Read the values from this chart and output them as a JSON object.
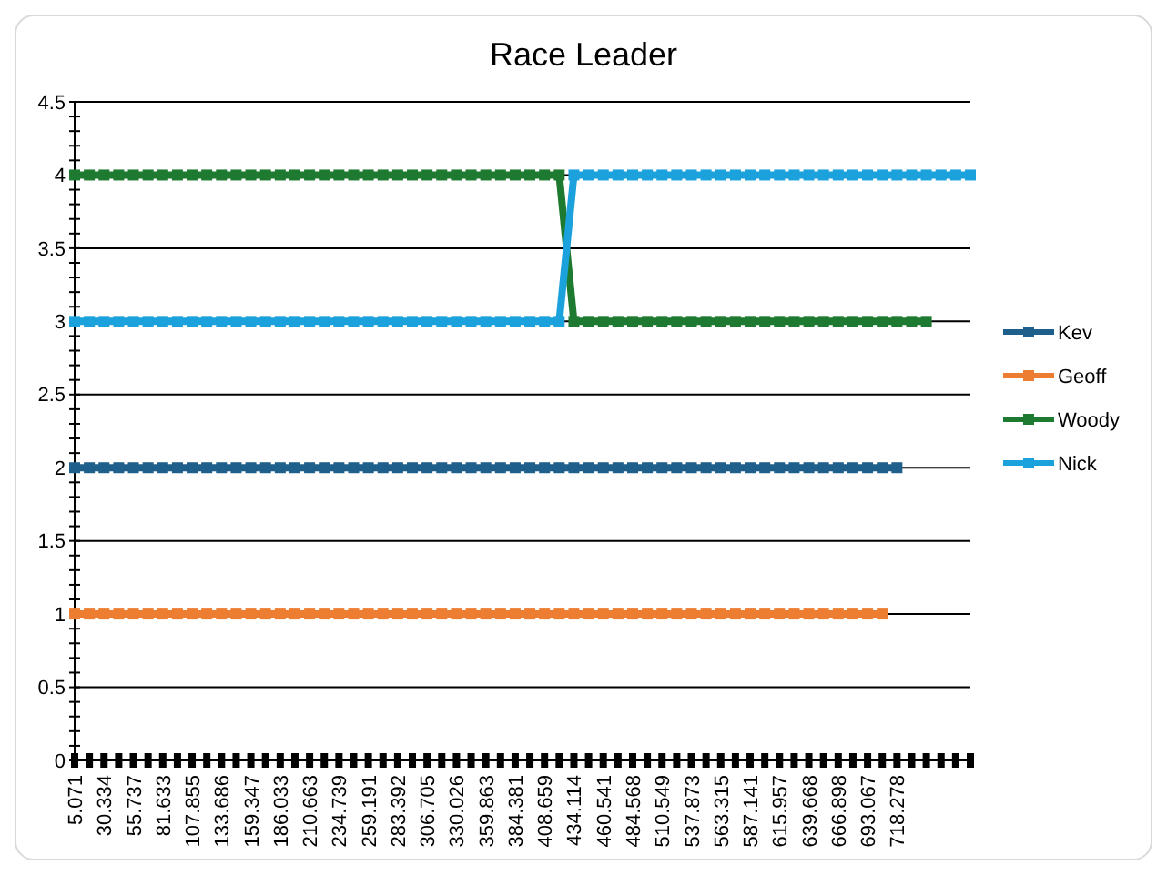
{
  "chart_data": {
    "type": "line",
    "title": "Race Leader",
    "categories": [
      "5.071",
      null,
      "30.334",
      null,
      "55.737",
      null,
      "81.633",
      null,
      "107.855",
      null,
      "133.686",
      null,
      "159.347",
      null,
      "186.033",
      null,
      "210.663",
      null,
      "234.739",
      null,
      "259.191",
      null,
      "283.392",
      null,
      "306.705",
      null,
      "330.026",
      null,
      "359.863",
      null,
      "384.381",
      null,
      "408.659",
      null,
      "434.114",
      null,
      "460.541",
      null,
      "484.568",
      null,
      "510.549",
      null,
      "537.873",
      null,
      "563.315",
      null,
      "587.141",
      null,
      "615.957",
      null,
      "639.668",
      null,
      "666.898",
      null,
      "693.067",
      null,
      "718.278",
      null,
      null,
      null,
      null,
      null
    ],
    "series": [
      {
        "name": "Kev",
        "color": "#1f5f8b",
        "values": [
          2,
          2,
          2,
          2,
          2,
          2,
          2,
          2,
          2,
          2,
          2,
          2,
          2,
          2,
          2,
          2,
          2,
          2,
          2,
          2,
          2,
          2,
          2,
          2,
          2,
          2,
          2,
          2,
          2,
          2,
          2,
          2,
          2,
          2,
          2,
          2,
          2,
          2,
          2,
          2,
          2,
          2,
          2,
          2,
          2,
          2,
          2,
          2,
          2,
          2,
          2,
          2,
          2,
          2,
          2,
          2,
          2,
          null,
          null,
          null,
          null,
          null
        ]
      },
      {
        "name": "Geoff",
        "color": "#ed7d31",
        "values": [
          1,
          1,
          1,
          1,
          1,
          1,
          1,
          1,
          1,
          1,
          1,
          1,
          1,
          1,
          1,
          1,
          1,
          1,
          1,
          1,
          1,
          1,
          1,
          1,
          1,
          1,
          1,
          1,
          1,
          1,
          1,
          1,
          1,
          1,
          1,
          1,
          1,
          1,
          1,
          1,
          1,
          1,
          1,
          1,
          1,
          1,
          1,
          1,
          1,
          1,
          1,
          1,
          1,
          1,
          1,
          1,
          null,
          null,
          null,
          null,
          null,
          null
        ]
      },
      {
        "name": "Woody",
        "color": "#1e7a30",
        "values": [
          4,
          4,
          4,
          4,
          4,
          4,
          4,
          4,
          4,
          4,
          4,
          4,
          4,
          4,
          4,
          4,
          4,
          4,
          4,
          4,
          4,
          4,
          4,
          4,
          4,
          4,
          4,
          4,
          4,
          4,
          4,
          4,
          4,
          4,
          3,
          3,
          3,
          3,
          3,
          3,
          3,
          3,
          3,
          3,
          3,
          3,
          3,
          3,
          3,
          3,
          3,
          3,
          3,
          3,
          3,
          3,
          3,
          3,
          3,
          null,
          null,
          null
        ]
      },
      {
        "name": "Nick",
        "color": "#1ba1dc",
        "values": [
          3,
          3,
          3,
          3,
          3,
          3,
          3,
          3,
          3,
          3,
          3,
          3,
          3,
          3,
          3,
          3,
          3,
          3,
          3,
          3,
          3,
          3,
          3,
          3,
          3,
          3,
          3,
          3,
          3,
          3,
          3,
          3,
          3,
          3,
          4,
          4,
          4,
          4,
          4,
          4,
          4,
          4,
          4,
          4,
          4,
          4,
          4,
          4,
          4,
          4,
          4,
          4,
          4,
          4,
          4,
          4,
          4,
          4,
          4,
          4,
          4,
          4
        ]
      }
    ],
    "ylim": [
      0,
      4.5
    ],
    "yticks": [
      0,
      0.5,
      1,
      1.5,
      2,
      2.5,
      3,
      3.5,
      4,
      4.5
    ],
    "grid": "y",
    "legend": "right",
    "marker": "square",
    "line_style": "solid"
  }
}
